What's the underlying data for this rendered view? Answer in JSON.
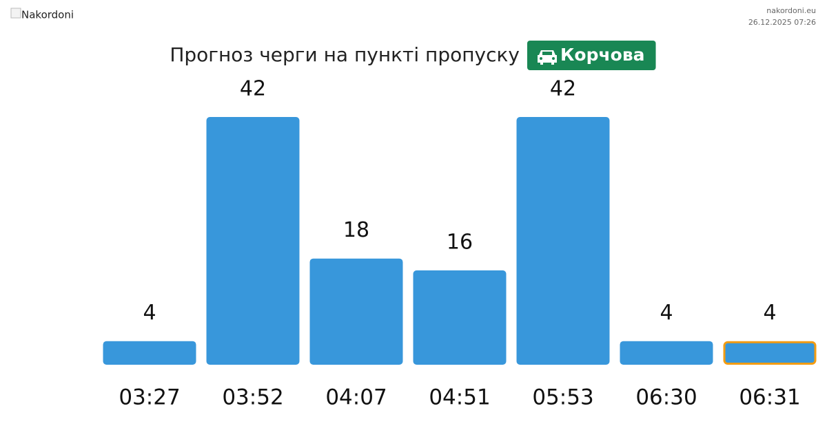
{
  "header": {
    "logo_alt": "Nakordoni",
    "site": "nakordoni.eu",
    "timestamp": "26.12.2025 07:26"
  },
  "chart_data": {
    "type": "bar",
    "title": "Прогноз черги на пункті пропуску",
    "badge": "Корчова",
    "badge_color": "#198754",
    "categories": [
      "03:27",
      "03:52",
      "04:07",
      "04:51",
      "05:53",
      "06:30",
      "06:31"
    ],
    "values": [
      4,
      42,
      18,
      16,
      42,
      4,
      4
    ],
    "color": "#3897db",
    "highlight_index": 6,
    "highlight_color": "#f39c12"
  }
}
